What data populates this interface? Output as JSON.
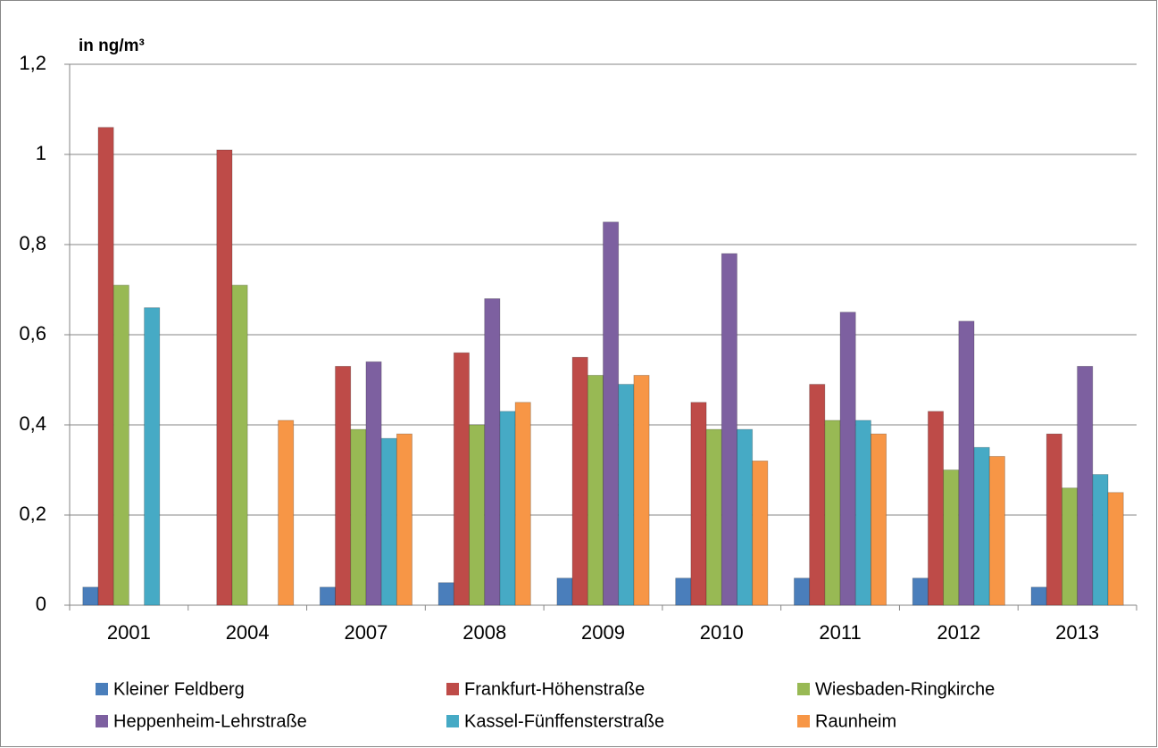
{
  "chart_data": {
    "type": "bar",
    "y_axis_label": "in ng/m³",
    "categories": [
      "2001",
      "2004",
      "2007",
      "2008",
      "2009",
      "2010",
      "2011",
      "2012",
      "2013"
    ],
    "series": [
      {
        "name": "Kleiner Feldberg",
        "color": "#4a7ebb",
        "values": [
          0.04,
          null,
          0.04,
          0.05,
          0.06,
          0.06,
          0.06,
          0.06,
          0.04
        ]
      },
      {
        "name": "Frankfurt-Höhenstraße",
        "color": "#be4b48",
        "values": [
          1.06,
          1.01,
          0.53,
          0.56,
          0.55,
          0.45,
          0.49,
          0.43,
          0.38
        ]
      },
      {
        "name": "Wiesbaden-Ringkirche",
        "color": "#98b954",
        "values": [
          0.71,
          0.71,
          0.39,
          0.4,
          0.51,
          0.39,
          0.41,
          0.3,
          0.26
        ]
      },
      {
        "name": "Heppenheim-Lehrstraße",
        "color": "#7d60a0",
        "values": [
          null,
          null,
          0.54,
          0.68,
          0.85,
          0.78,
          0.65,
          0.63,
          0.53
        ]
      },
      {
        "name": "Kassel-Fünffensterstraße",
        "color": "#46aac5",
        "values": [
          0.66,
          null,
          0.37,
          0.43,
          0.49,
          0.39,
          0.41,
          0.35,
          0.29
        ]
      },
      {
        "name": "Raunheim",
        "color": "#f79646",
        "values": [
          null,
          0.41,
          0.38,
          0.45,
          0.51,
          0.32,
          0.38,
          0.33,
          0.25
        ]
      }
    ],
    "ylim": [
      0,
      1.2
    ],
    "yticks": [
      0,
      {
        "value": 0.2,
        "label": "0,2"
      },
      {
        "value": 0.4,
        "label": "0,4"
      },
      {
        "value": 0.6,
        "label": "0,6"
      },
      {
        "value": 0.8,
        "label": "0,8"
      },
      1,
      {
        "value": 1.2,
        "label": "1,2"
      }
    ],
    "grid": true
  }
}
